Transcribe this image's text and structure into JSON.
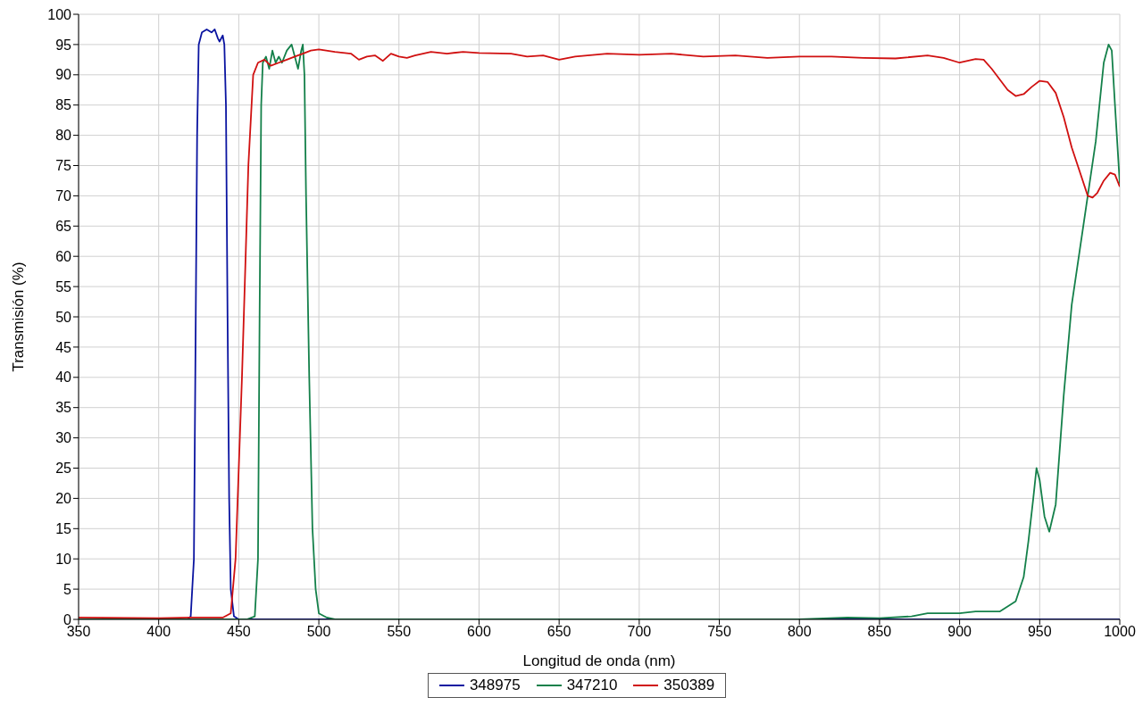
{
  "chart_data": {
    "type": "line",
    "xlabel": "Longitud de onda (nm)",
    "ylabel": "Transmisión (%)",
    "xlim": [
      350,
      1000
    ],
    "xticks": [
      350,
      400,
      450,
      500,
      550,
      600,
      650,
      700,
      750,
      800,
      850,
      900,
      950,
      1000
    ],
    "ylim": [
      0,
      100
    ],
    "yticks": [
      0,
      5,
      10,
      15,
      20,
      25,
      30,
      35,
      40,
      45,
      50,
      55,
      60,
      65,
      70,
      75,
      80,
      85,
      90,
      95,
      100
    ],
    "grid": true,
    "legend": "bottom",
    "marker": "none",
    "line_style": "solid",
    "series": [
      {
        "name": "348975",
        "color": "#0a14a0",
        "x": [
          350,
          418,
          420,
          422,
          424,
          425,
          427,
          430,
          433,
          435,
          437,
          438,
          440,
          441,
          442,
          443,
          444,
          445,
          447,
          450,
          1000
        ],
        "values": [
          0,
          0,
          0.5,
          10,
          80,
          95,
          97,
          97.5,
          97,
          97.5,
          96,
          95.5,
          96.5,
          95,
          85,
          50,
          20,
          5,
          0.5,
          0,
          0
        ]
      },
      {
        "name": "347210",
        "color": "#14804a",
        "x": [
          350,
          455,
          460,
          462,
          463,
          464,
          465,
          467,
          469,
          471,
          473,
          475,
          477,
          480,
          483,
          485,
          487,
          489,
          490,
          491,
          492,
          494,
          496,
          498,
          500,
          505,
          510,
          800,
          830,
          850,
          870,
          880,
          900,
          910,
          925,
          935,
          940,
          943,
          946,
          948,
          950,
          953,
          956,
          960,
          965,
          970,
          975,
          980,
          985,
          990,
          993,
          995,
          997,
          1000
        ],
        "values": [
          0,
          0,
          0.5,
          10,
          50,
          85,
          92,
          93,
          91,
          94,
          92,
          93,
          92,
          94,
          95,
          93,
          91,
          94,
          95,
          90,
          70,
          40,
          15,
          5,
          1,
          0.3,
          0,
          0,
          0.3,
          0.2,
          0.5,
          1,
          1,
          1.3,
          1.3,
          3,
          7,
          13,
          20,
          25,
          23,
          17,
          14.5,
          19,
          37,
          52,
          61,
          70,
          79,
          92,
          95,
          94,
          85,
          72
        ]
      },
      {
        "name": "350389",
        "color": "#d01010",
        "x": [
          350,
          400,
          420,
          440,
          445,
          448,
          452,
          456,
          459,
          462,
          466,
          470,
          475,
          480,
          485,
          490,
          495,
          500,
          510,
          520,
          525,
          530,
          535,
          540,
          545,
          550,
          555,
          560,
          570,
          580,
          590,
          600,
          620,
          630,
          640,
          650,
          660,
          680,
          700,
          720,
          740,
          760,
          780,
          800,
          820,
          840,
          860,
          880,
          890,
          900,
          910,
          915,
          920,
          930,
          935,
          940,
          945,
          950,
          955,
          960,
          965,
          970,
          975,
          980,
          983,
          986,
          990,
          994,
          997,
          1000
        ],
        "values": [
          0.3,
          0.2,
          0.3,
          0.3,
          1,
          10,
          40,
          75,
          90,
          92,
          92.5,
          91.5,
          92,
          92.5,
          93,
          93.5,
          94,
          94.2,
          93.8,
          93.5,
          92.5,
          93,
          93.2,
          92.3,
          93.5,
          93,
          92.8,
          93.2,
          93.8,
          93.5,
          93.8,
          93.6,
          93.5,
          93,
          93.2,
          92.5,
          93,
          93.5,
          93.3,
          93.5,
          93,
          93.2,
          92.8,
          93,
          93,
          92.8,
          92.7,
          93.2,
          92.8,
          92,
          92.6,
          92.5,
          91,
          87.5,
          86.5,
          86.8,
          88,
          89,
          88.8,
          87,
          83,
          78,
          74,
          70,
          69.7,
          70.5,
          72.5,
          73.8,
          73.5,
          71.5
        ]
      }
    ]
  }
}
